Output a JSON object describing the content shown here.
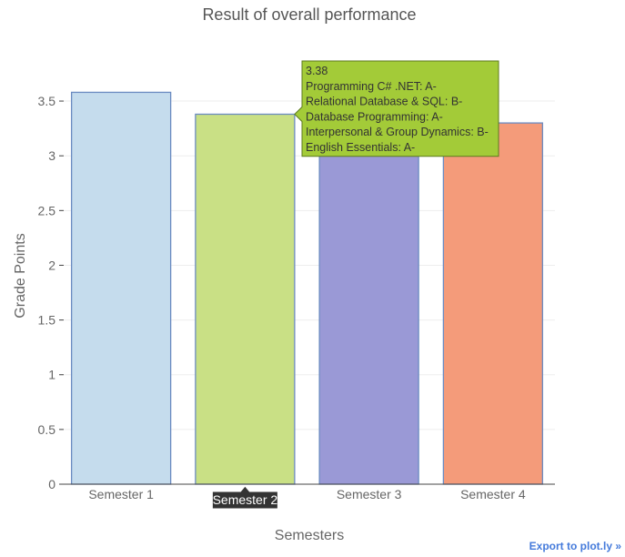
{
  "chart_data": {
    "type": "bar",
    "title": "Result of overall performance",
    "xlabel": "Semesters",
    "ylabel": "Grade Points",
    "categories": [
      "Semester 1",
      "Semester 2",
      "Semester 3",
      "Semester 4"
    ],
    "values": [
      3.58,
      3.38,
      3.3,
      3.3
    ],
    "ylim": [
      0,
      3.7
    ],
    "yticks": [
      0,
      0.5,
      1,
      1.5,
      2,
      2.5,
      3,
      3.5
    ],
    "ytick_labels": [
      "0",
      "0.5",
      "1",
      "1.5",
      "2",
      "2.5",
      "3",
      "3.5"
    ],
    "grid": true,
    "bar_colors": [
      "#c5dced",
      "#c9e085",
      "#9a99d6",
      "#f49b7a"
    ],
    "bar_outline": "#6b8bc1",
    "hover": {
      "category_index": 1,
      "value_label": "3.38",
      "lines": [
        "Programming C# .NET: A-",
        "Relational Database & SQL: B-",
        "Database Programming: A-",
        "Interpersonal & Group Dynamics: B-",
        "English Essentials: A-"
      ],
      "color": "#a3cb38",
      "axis_label": "Semester 2"
    }
  },
  "export_link": "Export to plot.ly »"
}
